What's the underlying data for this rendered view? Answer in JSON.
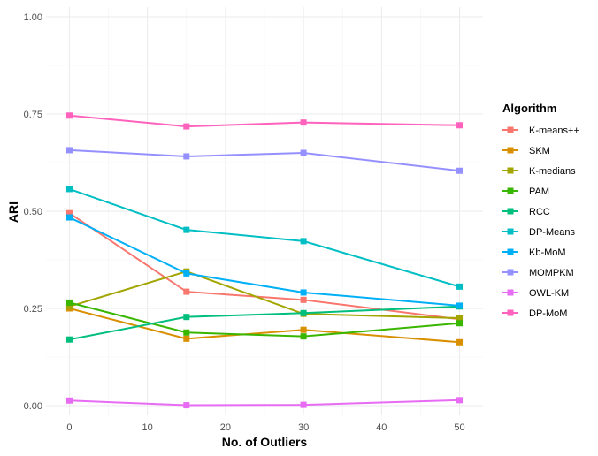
{
  "chart_data": {
    "type": "line",
    "xlabel": "No. of Outliers",
    "ylabel": "ARI",
    "xlim": [
      -3,
      53
    ],
    "ylim": [
      -0.025,
      1.025
    ],
    "x_ticks": [
      0,
      10,
      20,
      30,
      40,
      50
    ],
    "x_tick_labels": [
      "0",
      "10",
      "20",
      "30",
      "40",
      "50"
    ],
    "y_ticks": [
      0,
      0.25,
      0.5,
      0.75,
      1
    ],
    "y_tick_labels": [
      "0.00",
      "0.25",
      "0.50",
      "0.75",
      "1.00"
    ],
    "grid": true,
    "legend_title": "Algorithm",
    "legend_position": "right",
    "x": [
      0,
      15,
      30,
      50
    ],
    "series": [
      {
        "name": "K-means++",
        "color": "#F8766D",
        "values": [
          0.495,
          0.293,
          0.272,
          0.222
        ]
      },
      {
        "name": "SKM",
        "color": "#D89000",
        "values": [
          0.25,
          0.172,
          0.195,
          0.163
        ]
      },
      {
        "name": "K-medians",
        "color": "#A3A500",
        "values": [
          0.255,
          0.345,
          0.236,
          0.225
        ]
      },
      {
        "name": "PAM",
        "color": "#39B600",
        "values": [
          0.265,
          0.188,
          0.178,
          0.212
        ]
      },
      {
        "name": "RCC",
        "color": "#00BF7D",
        "values": [
          0.17,
          0.228,
          0.238,
          0.255
        ]
      },
      {
        "name": "DP-Means",
        "color": "#00BFC4",
        "values": [
          0.557,
          0.452,
          0.423,
          0.306
        ]
      },
      {
        "name": "Kb-MoM",
        "color": "#00B0F6",
        "values": [
          0.484,
          0.34,
          0.291,
          0.257
        ]
      },
      {
        "name": "MOMPKM",
        "color": "#9590FF",
        "values": [
          0.657,
          0.641,
          0.65,
          0.604
        ]
      },
      {
        "name": "OWL-KM",
        "color": "#E76BF3",
        "values": [
          0.013,
          0.001,
          0.002,
          0.014
        ]
      },
      {
        "name": "DP-MoM",
        "color": "#FF62BC",
        "values": [
          0.746,
          0.718,
          0.728,
          0.721
        ]
      }
    ]
  }
}
